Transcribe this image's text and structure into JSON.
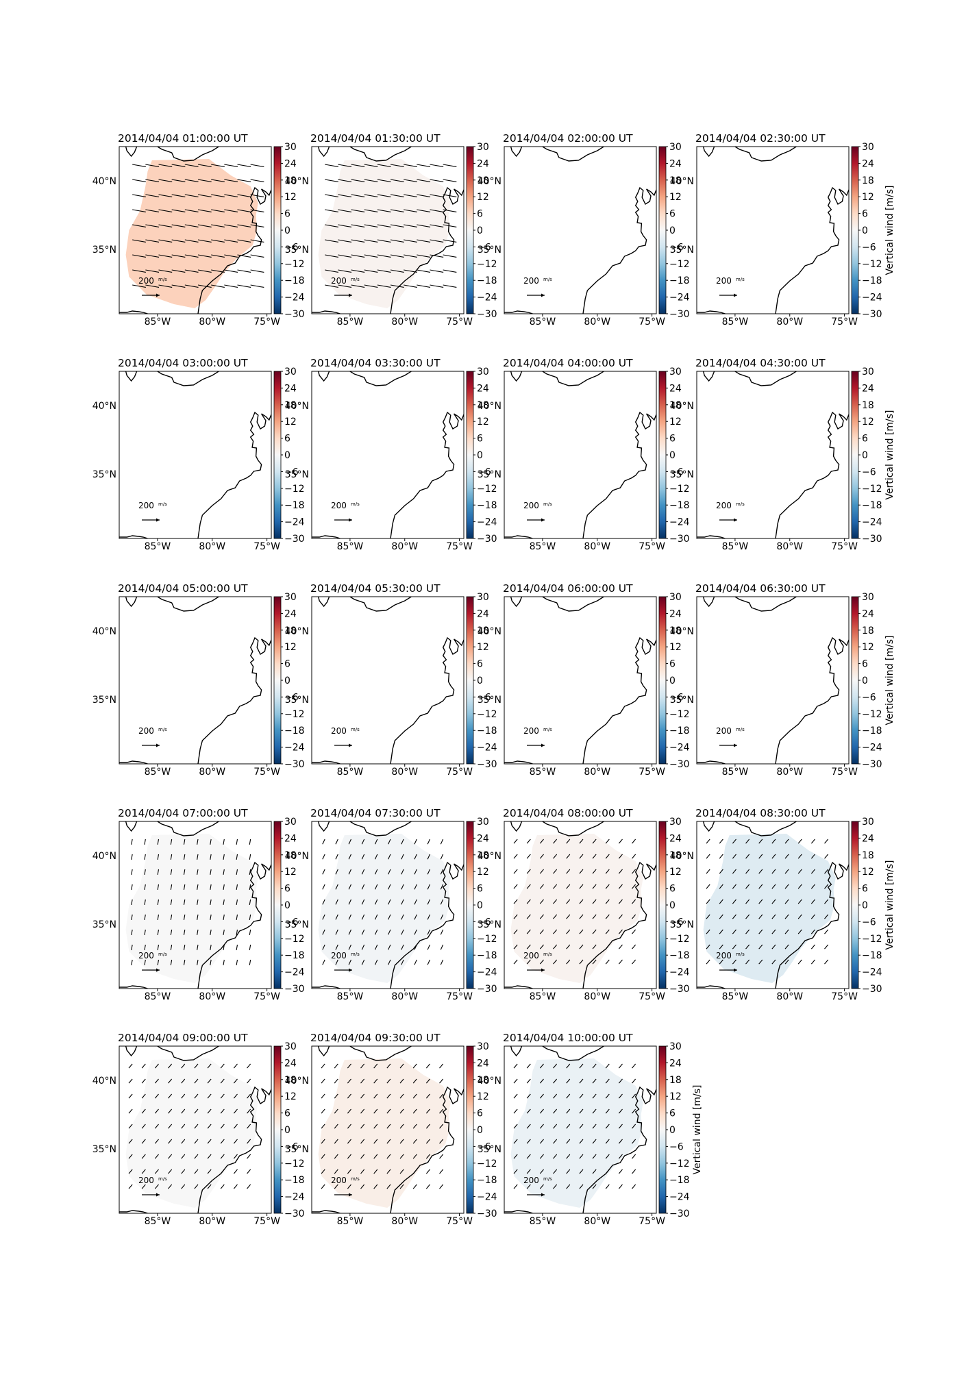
{
  "figure": {
    "colorbar_label": "Vertical wind [m/s]",
    "colorbar_ticks": [
      "30",
      "24",
      "18",
      "12",
      "6",
      "0",
      "−6",
      "−12",
      "−18",
      "−24",
      "−30"
    ],
    "colorbar_range": [
      -30,
      30
    ],
    "colormap": [
      "#67001f",
      "#b2182b",
      "#d6604d",
      "#f4a582",
      "#fddbc7",
      "#f7f7f7",
      "#d1e5f0",
      "#92c5de",
      "#4393c3",
      "#2166ac",
      "#053061"
    ],
    "lon_ticks": [
      "85°W",
      "80°W",
      "75°W"
    ],
    "lat_ticks": [
      "40°N",
      "35°N"
    ],
    "reference_vector": {
      "value": "200",
      "units": "m/s"
    },
    "coastline_color": "#000000"
  },
  "panels": [
    {
      "title": "2014/04/04 01:00:00 UT",
      "vertical_wind_ms": 7,
      "vector_direction": "east / east-southeast",
      "vector_strength": "long"
    },
    {
      "title": "2014/04/04 01:30:00 UT",
      "vertical_wind_ms": 1,
      "vector_direction": "east / east-southeast",
      "vector_strength": "long"
    },
    {
      "title": "2014/04/04 02:00:00 UT",
      "vertical_wind_ms": null,
      "vector_direction": "none",
      "vector_strength": "none"
    },
    {
      "title": "2014/04/04 02:30:00 UT",
      "vertical_wind_ms": null,
      "vector_direction": "none",
      "vector_strength": "none"
    },
    {
      "title": "2014/04/04 03:00:00 UT",
      "vertical_wind_ms": null,
      "vector_direction": "none",
      "vector_strength": "none"
    },
    {
      "title": "2014/04/04 03:30:00 UT",
      "vertical_wind_ms": null,
      "vector_direction": "none",
      "vector_strength": "none"
    },
    {
      "title": "2014/04/04 04:00:00 UT",
      "vertical_wind_ms": null,
      "vector_direction": "none",
      "vector_strength": "none"
    },
    {
      "title": "2014/04/04 04:30:00 UT",
      "vertical_wind_ms": null,
      "vector_direction": "none",
      "vector_strength": "none"
    },
    {
      "title": "2014/04/04 05:00:00 UT",
      "vertical_wind_ms": null,
      "vector_direction": "none",
      "vector_strength": "none"
    },
    {
      "title": "2014/04/04 05:30:00 UT",
      "vertical_wind_ms": null,
      "vector_direction": "none",
      "vector_strength": "none"
    },
    {
      "title": "2014/04/04 06:00:00 UT",
      "vertical_wind_ms": null,
      "vector_direction": "none",
      "vector_strength": "none"
    },
    {
      "title": "2014/04/04 06:30:00 UT",
      "vertical_wind_ms": null,
      "vector_direction": "none",
      "vector_strength": "none"
    },
    {
      "title": "2014/04/04 07:00:00 UT",
      "vertical_wind_ms": 0,
      "vector_direction": "south",
      "vector_strength": "short"
    },
    {
      "title": "2014/04/04 07:30:00 UT",
      "vertical_wind_ms": -1,
      "vector_direction": "south-southwest",
      "vector_strength": "short"
    },
    {
      "title": "2014/04/04 08:00:00 UT",
      "vertical_wind_ms": 1,
      "vector_direction": "southwest",
      "vector_strength": "short"
    },
    {
      "title": "2014/04/04 08:30:00 UT",
      "vertical_wind_ms": -4,
      "vector_direction": "southwest",
      "vector_strength": "short"
    },
    {
      "title": "2014/04/04 09:00:00 UT",
      "vertical_wind_ms": 0,
      "vector_direction": "southwest",
      "vector_strength": "short"
    },
    {
      "title": "2014/04/04 09:30:00 UT",
      "vertical_wind_ms": 2,
      "vector_direction": "southwest",
      "vector_strength": "short"
    },
    {
      "title": "2014/04/04 10:00:00 UT",
      "vertical_wind_ms": -2,
      "vector_direction": "southwest",
      "vector_strength": "short"
    }
  ]
}
